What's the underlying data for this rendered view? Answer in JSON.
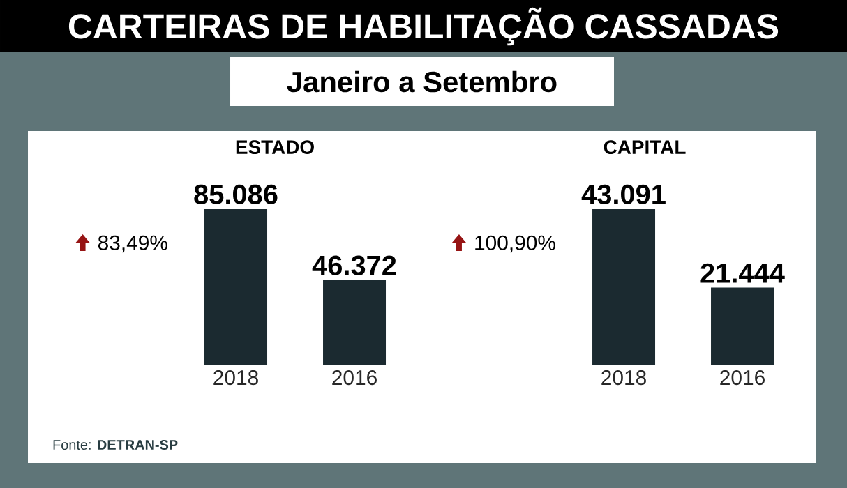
{
  "chart_data": [
    {
      "type": "other",
      "title": "CARTEIRAS DE HABILITAÇÃO CASSADAS",
      "subtitle": "Janeiro a Setembro",
      "annotations": [
        "Fonte: **DETRAN-SP**"
      ]
    },
    {
      "type": "bar",
      "title": "ESTADO",
      "categories": [
        "2018",
        "2016"
      ],
      "values": [
        85086,
        46372
      ],
      "value_labels": [
        "85.086",
        "46.372"
      ],
      "color": "#1b2a30",
      "annotations": [
        "83,49%"
      ]
    },
    {
      "type": "bar",
      "title": "CAPITAL",
      "categories": [
        "2018",
        "2016"
      ],
      "values": [
        43091,
        21444
      ],
      "value_labels": [
        "43.091",
        "21.444"
      ],
      "color": "#1b2a30",
      "annotations": [
        "100,90%"
      ]
    }
  ]
}
